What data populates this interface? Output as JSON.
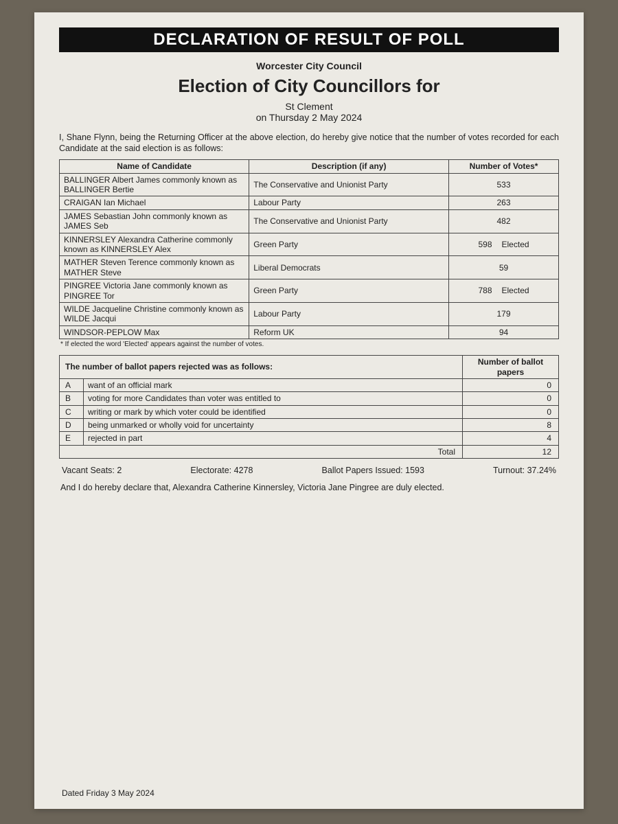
{
  "header": {
    "banner": "DECLARATION OF RESULT OF POLL",
    "council": "Worcester City Council",
    "title": "Election of City Councillors for",
    "ward": "St Clement",
    "date": "on Thursday 2 May 2024"
  },
  "intro": "I, Shane Flynn, being the Returning Officer at the above election, do hereby give notice that the number of votes recorded for each Candidate at the said election is as follows:",
  "results": {
    "columns": {
      "name": "Name of Candidate",
      "desc": "Description (if any)",
      "votes": "Number of Votes*"
    },
    "rows": [
      {
        "name": "BALLINGER Albert James commonly known as BALLINGER Bertie",
        "desc": "The Conservative and Unionist Party",
        "votes": "533",
        "elected": ""
      },
      {
        "name": "CRAIGAN Ian Michael",
        "desc": "Labour Party",
        "votes": "263",
        "elected": ""
      },
      {
        "name": "JAMES Sebastian John commonly known as JAMES Seb",
        "desc": "The Conservative and Unionist Party",
        "votes": "482",
        "elected": ""
      },
      {
        "name": "KINNERSLEY Alexandra Catherine commonly known as KINNERSLEY Alex",
        "desc": "Green Party",
        "votes": "598",
        "elected": "Elected"
      },
      {
        "name": "MATHER Steven Terence commonly known as MATHER Steve",
        "desc": "Liberal Democrats",
        "votes": "59",
        "elected": ""
      },
      {
        "name": "PINGREE Victoria Jane commonly known as PINGREE Tor",
        "desc": "Green Party",
        "votes": "788",
        "elected": "Elected"
      },
      {
        "name": "WILDE Jacqueline Christine commonly known as WILDE Jacqui",
        "desc": "Labour Party",
        "votes": "179",
        "elected": ""
      },
      {
        "name": "WINDSOR-PEPLOW Max",
        "desc": "Reform UK",
        "votes": "94",
        "elected": ""
      }
    ],
    "footnote": "* If elected the word 'Elected' appears against the number of votes."
  },
  "rejected": {
    "heading": "The number of ballot papers rejected was as follows:",
    "count_heading": "Number of ballot papers",
    "rows": [
      {
        "code": "A",
        "reason": "want of an official mark",
        "count": "0"
      },
      {
        "code": "B",
        "reason": "voting for more Candidates than voter was entitled to",
        "count": "0"
      },
      {
        "code": "C",
        "reason": "writing or mark by which voter could be identified",
        "count": "0"
      },
      {
        "code": "D",
        "reason": "being unmarked or wholly void for uncertainty",
        "count": "8"
      },
      {
        "code": "E",
        "reason": "rejected in part",
        "count": "4"
      }
    ],
    "total_label": "Total",
    "total": "12"
  },
  "stats": {
    "seats_label": "Vacant Seats:",
    "seats": "2",
    "electorate_label": "Electorate:",
    "electorate": "4278",
    "issued_label": "Ballot Papers Issued:",
    "issued": "1593",
    "turnout_label": "Turnout:",
    "turnout": "37.24%"
  },
  "declaration": "And I do hereby declare that, Alexandra Catherine Kinnersley, Victoria Jane Pingree are duly elected.",
  "dated": "Dated Friday 3 May 2024"
}
